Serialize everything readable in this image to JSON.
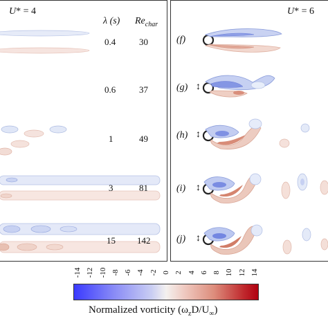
{
  "left_panel": {
    "ustar": "U",
    "ustar_val": "* = 4",
    "header_lambda": "λ (s)",
    "header_re": "Re",
    "header_re_sub": "char",
    "rows": [
      {
        "lambda": "0.4",
        "re": "30"
      },
      {
        "lambda": "0.6",
        "re": "37"
      },
      {
        "lambda": "1",
        "re": "49"
      },
      {
        "lambda": "3",
        "re": "81"
      },
      {
        "lambda": "15",
        "re": "142"
      }
    ]
  },
  "right_panel": {
    "ustar": "U",
    "ustar_val": "* = 6",
    "rows": [
      {
        "label": "(f)",
        "arrow": ""
      },
      {
        "label": "(g)",
        "arrow": "↕"
      },
      {
        "label": "(h)",
        "arrow": "↕"
      },
      {
        "label": "(i)",
        "arrow": "↕"
      },
      {
        "label": "(j)",
        "arrow": "↕"
      }
    ]
  },
  "colorbar": {
    "ticks": [
      "-14",
      "-12",
      "-10",
      "-8",
      "-6",
      "-4",
      "-2",
      "0",
      "2",
      "4",
      "6",
      "8",
      "10",
      "12",
      "14"
    ],
    "label": "Normalized vorticity (ω",
    "label_sub": "z",
    "label_rest": "D/U",
    "label_sub2": "∞",
    "label_end": ")",
    "neg_color": "#3a3aff",
    "pos_color": "#b00010"
  }
}
